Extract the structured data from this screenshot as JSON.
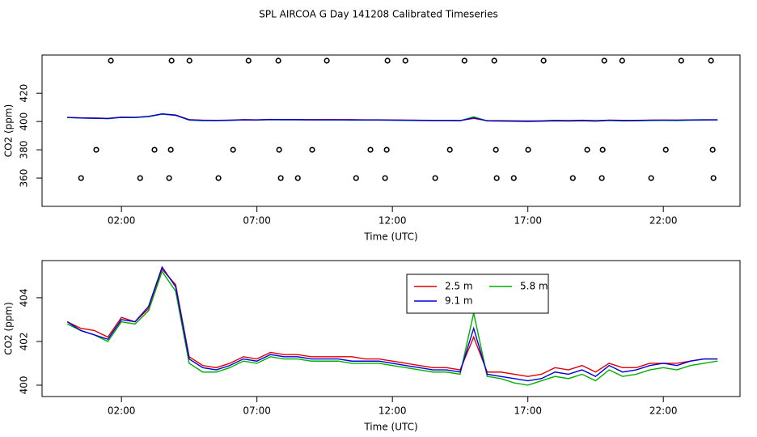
{
  "chart_data": [
    {
      "type": "line",
      "title": "SPL AIRCOA G  Day 141208  Calibrated Timeseries",
      "xlabel": "Time (UTC)",
      "ylabel": "CO2 (ppm)",
      "xlim": [
        -0.93,
        24.83
      ],
      "xticks": [
        {
          "value": 2,
          "label": "02:00"
        },
        {
          "value": 7,
          "label": "07:00"
        },
        {
          "value": 12,
          "label": "12:00"
        },
        {
          "value": 17,
          "label": "17:00"
        },
        {
          "value": 22,
          "label": "22:00"
        }
      ],
      "ylim": [
        340,
        447
      ],
      "yticks": [
        360,
        380,
        400,
        420
      ],
      "flags": {
        "x": [
          1.61,
          3.85,
          4.51,
          6.69,
          7.79,
          9.58,
          11.82,
          12.48,
          14.66,
          15.76,
          17.58,
          19.82,
          20.48,
          22.66,
          23.76,
          1.07,
          3.22,
          3.82,
          6.12,
          7.82,
          9.04,
          11.19,
          11.79,
          14.12,
          15.82,
          17.01,
          19.19,
          19.76,
          22.09,
          23.82,
          0.51,
          2.69,
          3.76,
          5.58,
          7.88,
          8.51,
          10.66,
          11.73,
          13.58,
          15.85,
          16.48,
          18.66,
          19.73,
          21.55,
          23.85
        ],
        "values": [
          443,
          443,
          443,
          443,
          443,
          443,
          443,
          443,
          443,
          443,
          443,
          443,
          443,
          443,
          443,
          380,
          380,
          380,
          380,
          380,
          380,
          380,
          380,
          380,
          380,
          380,
          380,
          380,
          380,
          380,
          360,
          360,
          360,
          360,
          360,
          360,
          360,
          360,
          360,
          360,
          360,
          360,
          360,
          360,
          360
        ]
      }
    },
    {
      "type": "line",
      "xlabel": "Time (UTC)",
      "ylabel": "CO2 (ppm)",
      "xlim": [
        -0.93,
        24.83
      ],
      "xticks": [
        {
          "value": 2,
          "label": "02:00"
        },
        {
          "value": 7,
          "label": "07:00"
        },
        {
          "value": 12,
          "label": "12:00"
        },
        {
          "value": 17,
          "label": "17:00"
        },
        {
          "value": 22,
          "label": "22:00"
        }
      ],
      "ylim": [
        399.48,
        405.7
      ],
      "yticks": [
        400,
        402,
        404
      ],
      "legend": "top",
      "x": [
        0,
        0.5,
        1,
        1.5,
        2,
        2.5,
        3,
        3.5,
        4,
        4.5,
        5,
        5.5,
        6,
        6.5,
        7,
        7.5,
        8,
        8.5,
        9,
        9.5,
        10,
        10.5,
        11,
        11.5,
        12,
        12.5,
        13,
        13.5,
        14,
        14.5,
        15,
        15.5,
        16,
        16.5,
        17,
        17.5,
        18,
        18.5,
        19,
        19.5,
        20,
        20.5,
        21,
        21.5,
        22,
        22.5,
        23,
        23.5,
        24
      ],
      "series": [
        {
          "name": "2.5 m",
          "color": "#e00000",
          "values": [
            402.9,
            402.6,
            402.5,
            402.2,
            403.1,
            402.9,
            403.5,
            405.3,
            404.6,
            401.3,
            400.9,
            400.8,
            401.0,
            401.3,
            401.2,
            401.5,
            401.4,
            401.4,
            401.3,
            401.3,
            401.3,
            401.3,
            401.2,
            401.2,
            401.1,
            401.0,
            400.9,
            400.8,
            400.8,
            400.7,
            402.2,
            400.6,
            400.6,
            400.5,
            400.4,
            400.5,
            400.8,
            400.7,
            400.9,
            400.6,
            401.0,
            400.8,
            400.8,
            401.0,
            401.0,
            401.0,
            401.1,
            401.2,
            401.2
          ]
        },
        {
          "name": "5.8 m",
          "color": "#00b000",
          "values": [
            402.8,
            402.5,
            402.3,
            402.0,
            402.9,
            402.8,
            403.4,
            405.2,
            404.3,
            401.0,
            400.6,
            400.6,
            400.8,
            401.1,
            401.0,
            401.3,
            401.2,
            401.2,
            401.1,
            401.1,
            401.1,
            401.0,
            401.0,
            401.0,
            400.9,
            400.8,
            400.7,
            400.6,
            400.6,
            400.5,
            403.3,
            400.4,
            400.3,
            400.1,
            400.0,
            400.2,
            400.4,
            400.3,
            400.5,
            400.2,
            400.7,
            400.4,
            400.5,
            400.7,
            400.8,
            400.7,
            400.9,
            401.0,
            401.1
          ]
        },
        {
          "name": "9.1 m",
          "color": "#0000e0",
          "values": [
            402.9,
            402.5,
            402.3,
            402.1,
            403.0,
            402.9,
            403.6,
            405.4,
            404.5,
            401.2,
            400.8,
            400.7,
            400.9,
            401.2,
            401.1,
            401.4,
            401.3,
            401.3,
            401.2,
            401.2,
            401.2,
            401.1,
            401.1,
            401.1,
            401.0,
            400.9,
            400.8,
            400.7,
            400.7,
            400.6,
            402.6,
            400.5,
            400.4,
            400.3,
            400.2,
            400.3,
            400.6,
            400.5,
            400.7,
            400.4,
            400.9,
            400.6,
            400.7,
            400.9,
            401.0,
            400.9,
            401.1,
            401.2,
            401.2
          ]
        }
      ]
    }
  ]
}
